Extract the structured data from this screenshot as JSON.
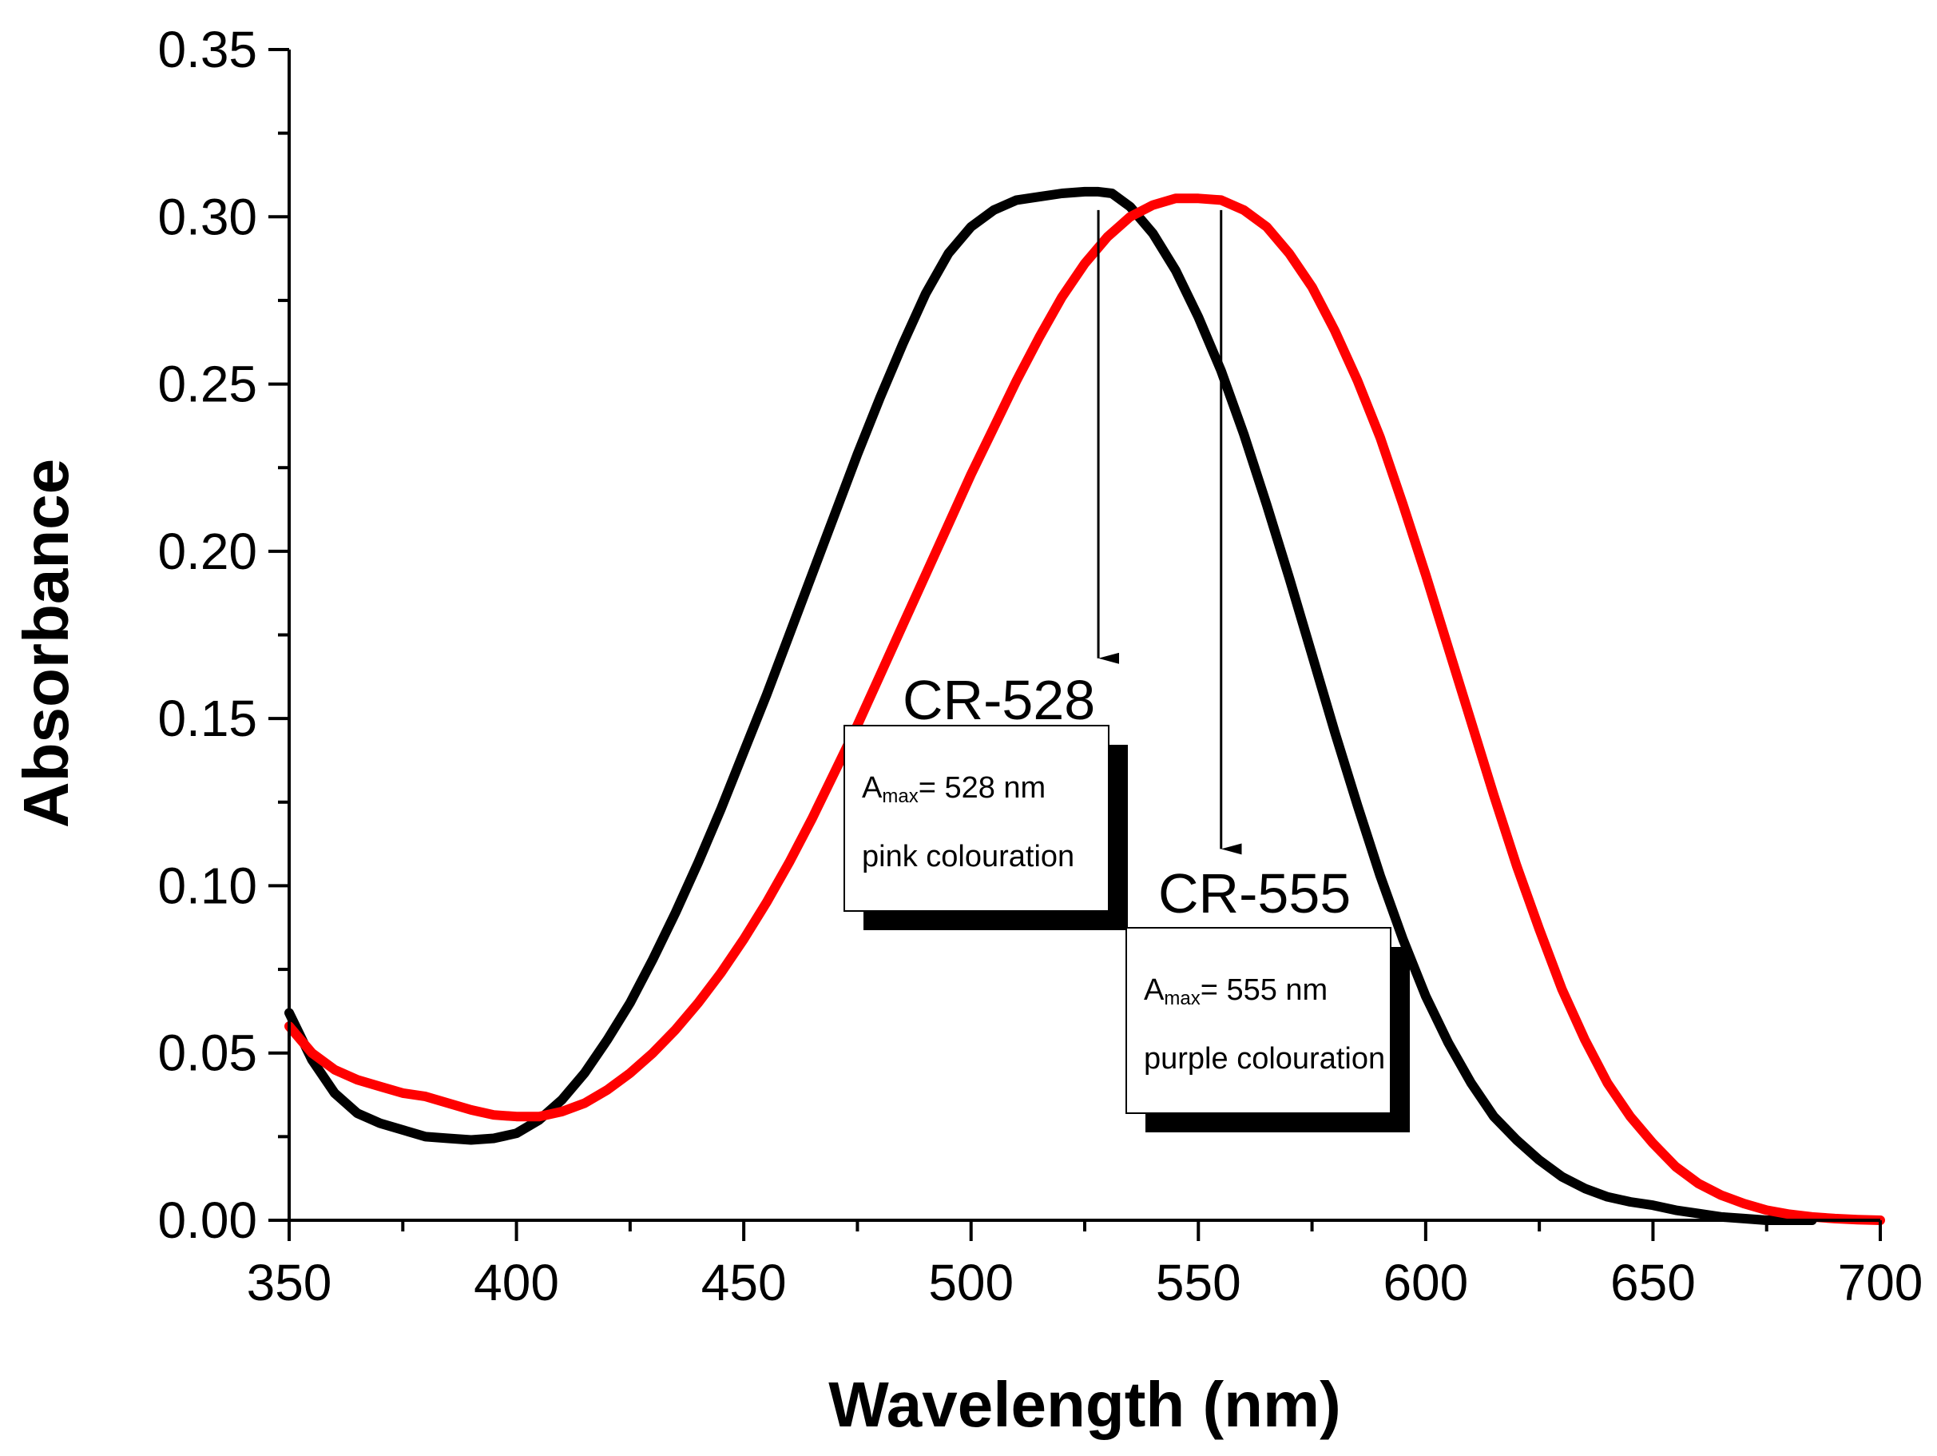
{
  "chart_data": {
    "type": "line",
    "title": "",
    "xlabel": "Wavelength (nm)",
    "ylabel": "Absorbance",
    "xlim": [
      350,
      700
    ],
    "ylim": [
      0,
      0.35
    ],
    "x_ticks": [
      "350",
      "400",
      "450",
      "500",
      "550",
      "600",
      "650",
      "700"
    ],
    "y_ticks": [
      "0.00",
      "0.05",
      "0.10",
      "0.15",
      "0.20",
      "0.25",
      "0.30",
      "0.35"
    ],
    "grid": false,
    "series": [
      {
        "name": "CR-528",
        "color": "#000000",
        "x": [
          350,
          355,
          360,
          365,
          370,
          375,
          380,
          385,
          390,
          395,
          400,
          405,
          410,
          415,
          420,
          425,
          430,
          435,
          440,
          445,
          450,
          455,
          460,
          465,
          470,
          475,
          480,
          485,
          490,
          495,
          500,
          505,
          510,
          515,
          520,
          525,
          528,
          531,
          535,
          540,
          545,
          550,
          555,
          560,
          565,
          570,
          575,
          580,
          585,
          590,
          595,
          600,
          605,
          610,
          615,
          620,
          625,
          630,
          635,
          640,
          645,
          650,
          655,
          660,
          665,
          670,
          675,
          680,
          685
        ],
        "y": [
          0.062,
          0.048,
          0.038,
          0.032,
          0.029,
          0.027,
          0.025,
          0.0245,
          0.024,
          0.0245,
          0.026,
          0.03,
          0.036,
          0.044,
          0.054,
          0.065,
          0.078,
          0.092,
          0.107,
          0.123,
          0.14,
          0.157,
          0.175,
          0.193,
          0.211,
          0.229,
          0.246,
          0.262,
          0.277,
          0.289,
          0.297,
          0.302,
          0.305,
          0.306,
          0.307,
          0.3075,
          0.3075,
          0.307,
          0.303,
          0.295,
          0.284,
          0.27,
          0.254,
          0.235,
          0.214,
          0.192,
          0.169,
          0.146,
          0.124,
          0.103,
          0.084,
          0.067,
          0.053,
          0.041,
          0.031,
          0.024,
          0.018,
          0.013,
          0.0095,
          0.007,
          0.0055,
          0.0045,
          0.003,
          0.002,
          0.001,
          0.0005,
          0.0,
          0.0,
          0.0
        ]
      },
      {
        "name": "CR-555",
        "color": "#ff0000",
        "x": [
          350,
          355,
          360,
          365,
          370,
          375,
          380,
          385,
          390,
          395,
          400,
          405,
          410,
          415,
          420,
          425,
          430,
          435,
          440,
          445,
          450,
          455,
          460,
          465,
          470,
          475,
          480,
          485,
          490,
          495,
          500,
          505,
          510,
          515,
          520,
          525,
          530,
          535,
          540,
          545,
          550,
          555,
          560,
          565,
          570,
          575,
          580,
          585,
          590,
          595,
          600,
          605,
          610,
          615,
          620,
          625,
          630,
          635,
          640,
          645,
          650,
          655,
          660,
          665,
          670,
          675,
          680,
          685,
          690,
          695,
          700
        ],
        "y": [
          0.058,
          0.05,
          0.045,
          0.042,
          0.04,
          0.038,
          0.037,
          0.035,
          0.033,
          0.0315,
          0.031,
          0.031,
          0.0325,
          0.035,
          0.039,
          0.044,
          0.05,
          0.057,
          0.065,
          0.074,
          0.084,
          0.095,
          0.107,
          0.12,
          0.134,
          0.148,
          0.163,
          0.178,
          0.193,
          0.208,
          0.223,
          0.237,
          0.251,
          0.264,
          0.276,
          0.286,
          0.294,
          0.3,
          0.3035,
          0.3055,
          0.3055,
          0.305,
          0.302,
          0.297,
          0.289,
          0.279,
          0.266,
          0.251,
          0.234,
          0.214,
          0.193,
          0.171,
          0.149,
          0.127,
          0.106,
          0.087,
          0.069,
          0.054,
          0.041,
          0.031,
          0.023,
          0.016,
          0.011,
          0.0075,
          0.005,
          0.003,
          0.0018,
          0.001,
          0.0005,
          0.0002,
          0.0
        ]
      }
    ],
    "annotations": [
      {
        "peak_label": "CR-528",
        "arrow_x": 528,
        "arrow_from_y": 0.302,
        "arrow_to_y": 0.168,
        "line1_main": "A",
        "line1_sub": "max",
        "line1_rest": "= 528 nm",
        "line2": "pink colouration"
      },
      {
        "peak_label": "CR-555",
        "arrow_x": 555,
        "arrow_from_y": 0.302,
        "arrow_to_y": 0.111,
        "line1_main": "A",
        "line1_sub": "max",
        "line1_rest": "= 555 nm",
        "line2": "purple colouration"
      }
    ]
  }
}
